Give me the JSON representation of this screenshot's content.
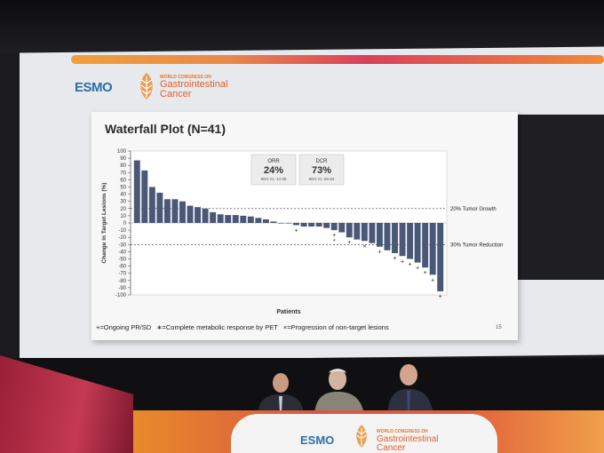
{
  "congress": {
    "brand": "ESMO",
    "line1": "WORLD CONGRESS ON",
    "line2": "Gastrointestinal",
    "line3": "Cancer"
  },
  "slide": {
    "title": "Waterfall Plot (N=41)",
    "page_number": "15",
    "legend": {
      "ongoing": "+=Ongoing PR/SD",
      "complete": "∗=Complete metabolic response by PET",
      "progression": "×=Progression of non-target lesions"
    }
  },
  "chart_data": {
    "type": "bar",
    "title": "Waterfall Plot (N=41)",
    "xlabel": "Patients",
    "ylabel": "Change in Target Lesions (%)",
    "ylim": [
      -100,
      100
    ],
    "yticks": [
      100,
      90,
      80,
      70,
      60,
      50,
      40,
      30,
      20,
      10,
      0,
      -10,
      -20,
      -30,
      -40,
      -50,
      -60,
      -70,
      -80,
      -90,
      -100
    ],
    "values": [
      87,
      73,
      50,
      42,
      33,
      33,
      30,
      24,
      22,
      20,
      15,
      12,
      11,
      11,
      10,
      9,
      7,
      5,
      2,
      0,
      0,
      -3,
      -5,
      -5,
      -5,
      -7,
      -10,
      -13,
      -20,
      -23,
      -25,
      -28,
      -33,
      -38,
      -42,
      -46,
      -50,
      -55,
      -62,
      -72,
      -95
    ],
    "markers": [
      {
        "index": 21,
        "symbol": "+"
      },
      {
        "index": 26,
        "symbol": "+"
      },
      {
        "index": 26,
        "symbol": "*"
      },
      {
        "index": 28,
        "symbol": "+"
      },
      {
        "index": 30,
        "symbol": "×"
      },
      {
        "index": 32,
        "symbol": "+"
      },
      {
        "index": 34,
        "symbol": "+"
      },
      {
        "index": 35,
        "symbol": "+"
      },
      {
        "index": 36,
        "symbol": "+"
      },
      {
        "index": 37,
        "symbol": "+"
      },
      {
        "index": 38,
        "symbol": "+"
      },
      {
        "index": 39,
        "symbol": "+"
      },
      {
        "index": 40,
        "symbol": "+"
      }
    ],
    "reference_lines": [
      {
        "value": 20,
        "label": "20% Tumor Growth"
      },
      {
        "value": -30,
        "label": "30% Tumor Reduction"
      }
    ],
    "stats": [
      {
        "name": "ORR",
        "value": "24%",
        "ci": "95% CI, 14-39"
      },
      {
        "name": "DCR",
        "value": "73%",
        "ci": "95% CI, 56-84"
      }
    ],
    "bar_color": "#4a5878",
    "grid": false
  }
}
